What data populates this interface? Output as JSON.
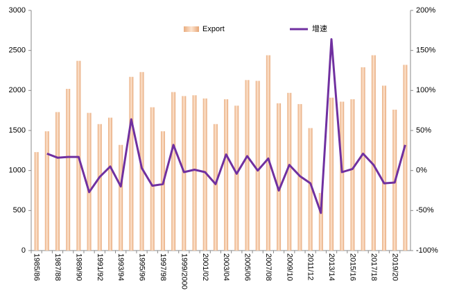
{
  "chart_data": {
    "type": "bar-line",
    "categories": [
      "1985/86",
      null,
      "1987/88",
      null,
      "1989/90",
      null,
      "1991/92",
      null,
      "1993/94",
      null,
      "1995/96",
      null,
      "1997/98",
      null,
      "1999/2000",
      null,
      "2001/02",
      null,
      "2003/04",
      null,
      "2005/06",
      null,
      "2007/08",
      null,
      "2009/10",
      null,
      "2011/12",
      null,
      "2013/14",
      null,
      "2015/16",
      null,
      "2017/18",
      null,
      "2019/20",
      null
    ],
    "series": [
      {
        "name": "Export",
        "type": "bar",
        "color": "#f2c4a0",
        "values": [
          1230,
          1490,
          1730,
          2020,
          2370,
          1720,
          1580,
          1660,
          1320,
          2170,
          2230,
          1790,
          1490,
          1980,
          1930,
          1940,
          1900,
          1580,
          1890,
          1810,
          2130,
          2120,
          2440,
          1840,
          1970,
          1830,
          1530,
          720,
          1910,
          1860,
          1890,
          2290,
          2440,
          2060,
          1760,
          2320
        ]
      },
      {
        "name": "增速",
        "type": "line",
        "axis": "y2",
        "color": "#7030a0",
        "values": [
          null,
          21,
          16,
          17,
          17,
          -27,
          -8,
          5,
          -20,
          64,
          3,
          -19,
          -17,
          32,
          -2,
          1,
          -2,
          -17,
          20,
          -4,
          18,
          0,
          15,
          -25,
          7,
          -7,
          -16,
          -53,
          164,
          -2,
          2,
          21,
          7,
          -16,
          -15,
          32
        ]
      }
    ],
    "ylim": [
      0,
      3000
    ],
    "yticks": [
      0,
      500,
      1000,
      1500,
      2000,
      2500,
      3000
    ],
    "y2lim": [
      -100,
      200
    ],
    "y2ticks": [
      {
        "value": -100,
        "label": "-100%"
      },
      {
        "value": -50,
        "label": "-50%"
      },
      {
        "value": 0,
        "label": "0%"
      },
      {
        "value": 50,
        "label": "50%"
      },
      {
        "value": 100,
        "label": "100%"
      },
      {
        "value": 150,
        "label": "150%"
      },
      {
        "value": 200,
        "label": "200%"
      }
    ],
    "legend": "top"
  }
}
